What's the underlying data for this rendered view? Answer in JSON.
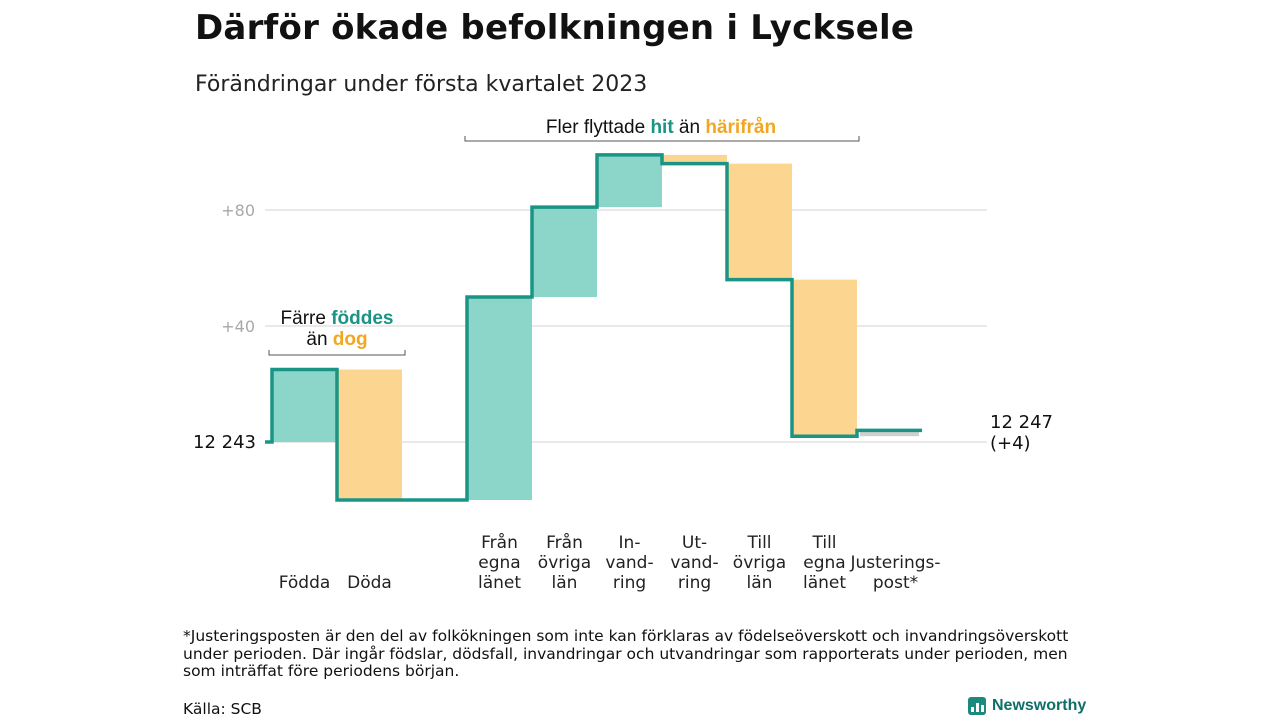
{
  "title": "Därför ökade befolkningen i Lycksele",
  "subtitle": "Förändringar under första kvartalet 2023",
  "chart_data": {
    "type": "waterfall",
    "baseline": 12243,
    "baseline_label": "12 243",
    "end_label": "12 247",
    "end_change_label": "(+4)",
    "ylim": [
      -20,
      102
    ],
    "y_ticks": [
      {
        "value": 40,
        "label": "+40"
      },
      {
        "value": 80,
        "label": "+80"
      }
    ],
    "grid": true,
    "colors": {
      "increase": "#8cd5c9",
      "decrease": "#fcd690",
      "line": "#1a9585",
      "adjustment": "#cfcfcf"
    },
    "steps": [
      {
        "lines": [
          "Födda"
        ],
        "change": 25,
        "kind": "increase"
      },
      {
        "lines": [
          "Döda"
        ],
        "change": -45,
        "kind": "decrease"
      },
      {
        "lines": [
          ""
        ],
        "change": 0,
        "kind": "none"
      },
      {
        "lines": [
          "Från",
          "egna",
          "länet"
        ],
        "change": 70,
        "kind": "increase"
      },
      {
        "lines": [
          "Från",
          "övriga",
          "län"
        ],
        "change": 31,
        "kind": "increase"
      },
      {
        "lines": [
          "In-",
          "vand-",
          "ring"
        ],
        "change": 18,
        "kind": "increase"
      },
      {
        "lines": [
          "Ut-",
          "vand-",
          "ring"
        ],
        "change": -3,
        "kind": "decrease"
      },
      {
        "lines": [
          "Till",
          "övriga",
          "län"
        ],
        "change": -40,
        "kind": "decrease"
      },
      {
        "lines": [
          "Till",
          "egna",
          "länet"
        ],
        "change": -54,
        "kind": "decrease"
      },
      {
        "lines": [
          "Justerings-",
          "post*"
        ],
        "change": 2,
        "kind": "adjustment"
      }
    ],
    "annotations": {
      "births": {
        "prefix": "Färre ",
        "hi1": "föddes",
        "mid": "än ",
        "hi2": "dog"
      },
      "migration": {
        "prefix": "Fler flyttade ",
        "hi1": "hit",
        "mid": " än ",
        "hi2": "härifrån"
      }
    }
  },
  "footnote": "*Justeringsposten är den del av folkökningen som inte kan förklaras av födelseöverskott och invandringsöverskott under perioden. Där ingår födslar, dödsfall, invandringar och utvandringar som rapporterats under perioden, men som inträffat före periodens början.",
  "source": "Källa: SCB",
  "brand": "Newsworthy",
  "brand_icon": "bar-chart-icon"
}
